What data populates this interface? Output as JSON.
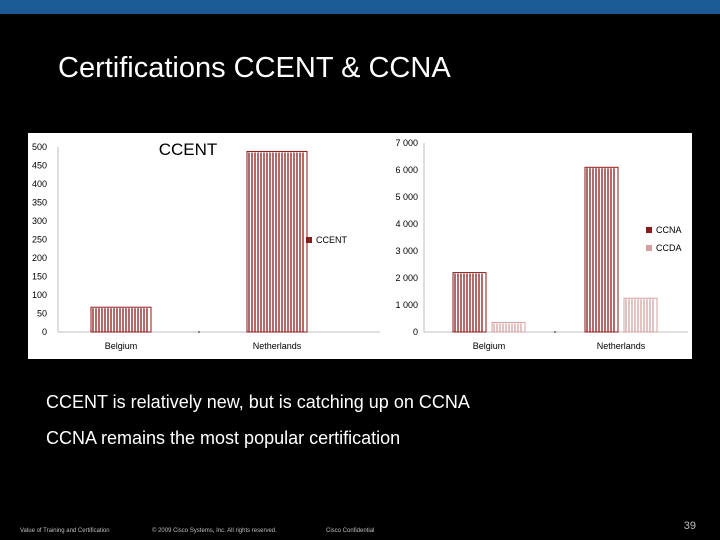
{
  "slide": {
    "title": "Certifications  CCENT & CCNA",
    "bullets": [
      "CCENT is relatively new, but is catching up on CCNA",
      "CCNA remains the most popular certification"
    ],
    "footer": {
      "left": "Value of Training and Certification",
      "copyright": "© 2009 Cisco Systems, Inc. All rights reserved.",
      "confidential": "Cisco Confidential",
      "page": "39"
    }
  },
  "colors": {
    "accent_bar": "#1a5a95",
    "ccent": "#8b1a1a",
    "ccna": "#8b1a1a",
    "ccda": "#d4a0a0"
  },
  "chart_data": [
    {
      "type": "bar",
      "title": "CCENT",
      "categories": [
        "Belgium",
        "Netherlands"
      ],
      "y_ticks": [
        "0",
        "50",
        "100",
        "150",
        "200",
        "250",
        "300",
        "350",
        "400",
        "450",
        "500"
      ],
      "ylim": [
        0,
        500
      ],
      "series": [
        {
          "name": "CCENT",
          "values": [
            67,
            488
          ]
        }
      ],
      "legend": "right",
      "grid": false
    },
    {
      "type": "bar",
      "title": "",
      "categories": [
        "Belgium",
        "Netherlands"
      ],
      "y_ticks": [
        "0",
        "1 000",
        "2 000",
        "3 000",
        "4 000",
        "5 000",
        "6 000",
        "7 000"
      ],
      "ylim": [
        0,
        7000
      ],
      "series": [
        {
          "name": "CCNA",
          "values": [
            2200,
            6100
          ]
        },
        {
          "name": "CCDA",
          "values": [
            350,
            1250
          ]
        }
      ],
      "legend": "right",
      "grid": false
    }
  ]
}
